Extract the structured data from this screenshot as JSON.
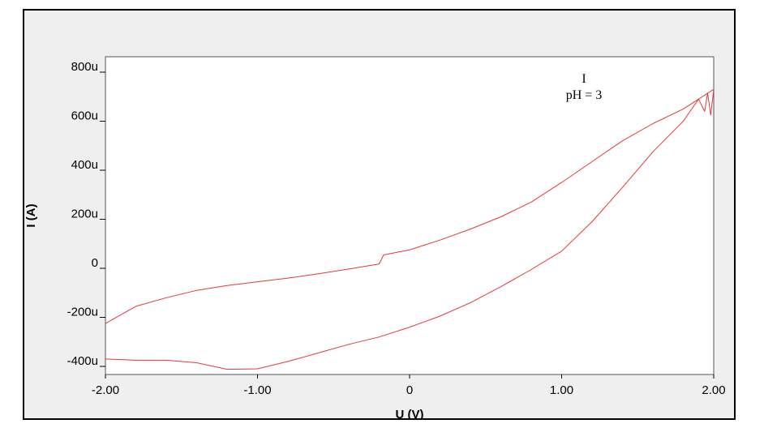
{
  "chart_data": {
    "type": "line",
    "title": "",
    "xlabel": "U (V)",
    "ylabel": "I (A)",
    "xlim": [
      -2.0,
      2.0
    ],
    "ylim": [
      -420,
      860
    ],
    "y_unit": "uA",
    "grid": false,
    "legend": "none",
    "x_ticks": [
      {
        "value": -2.0,
        "label": "-2.00"
      },
      {
        "value": -1.0,
        "label": "-1.00"
      },
      {
        "value": 0.0,
        "label": "0"
      },
      {
        "value": 1.0,
        "label": "1.00"
      },
      {
        "value": 2.0,
        "label": "2.00"
      }
    ],
    "y_ticks": [
      {
        "value": 800,
        "label": "800u"
      },
      {
        "value": 600,
        "label": "600u"
      },
      {
        "value": 400,
        "label": "400u"
      },
      {
        "value": 200,
        "label": "200u"
      },
      {
        "value": 0,
        "label": "0"
      },
      {
        "value": -200,
        "label": "-200u"
      },
      {
        "value": -400,
        "label": "-400u"
      }
    ],
    "annotation": {
      "line1": "I",
      "line2": "pH = 3"
    },
    "series": [
      {
        "color": "#e53935",
        "x": [
          -2.0,
          -1.8,
          -1.6,
          -1.4,
          -1.2,
          -1.0,
          -0.8,
          -0.6,
          -0.4,
          -0.2,
          -0.17,
          0.0,
          0.2,
          0.4,
          0.6,
          0.8,
          1.0,
          1.2,
          1.4,
          1.6,
          1.8,
          1.9,
          2.0,
          1.98,
          1.96,
          1.94,
          1.9,
          1.8,
          1.6,
          1.4,
          1.2,
          1.0,
          0.8,
          0.6,
          0.4,
          0.2,
          0.0,
          -0.2,
          -0.4,
          -0.6,
          -0.8,
          -1.0,
          -1.2,
          -1.4,
          -1.6,
          -1.8,
          -2.0
        ],
        "y": [
          -225,
          -155,
          -120,
          -90,
          -70,
          -55,
          -40,
          -22,
          -3,
          18,
          55,
          75,
          115,
          160,
          210,
          270,
          350,
          435,
          520,
          590,
          650,
          690,
          730,
          625,
          715,
          640,
          690,
          600,
          475,
          330,
          190,
          70,
          -5,
          -75,
          -140,
          -195,
          -240,
          -280,
          -310,
          -345,
          -380,
          -410,
          -412,
          -385,
          -375,
          -375,
          -370
        ]
      }
    ]
  }
}
